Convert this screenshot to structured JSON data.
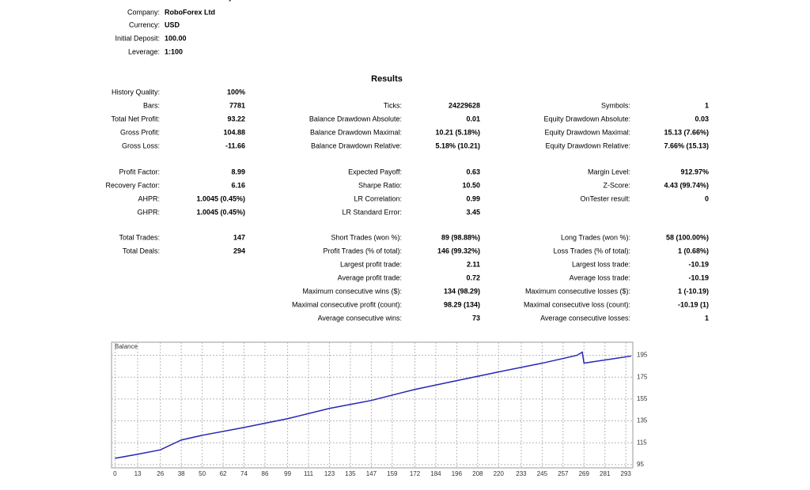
{
  "info": [
    {
      "label": "SessionCloseFridayClose=false",
      "value": null
    },
    {
      "label": "Company:",
      "value": "RoboForex Ltd"
    },
    {
      "label": "Currency:",
      "value": "USD"
    },
    {
      "label": "Initial Deposit:",
      "value": "100.00"
    },
    {
      "label": "Leverage:",
      "value": "1:100"
    }
  ],
  "results": {
    "title": "Results",
    "sections": [
      [
        [
          "History Quality:",
          "100%",
          null,
          null,
          null,
          null
        ],
        [
          "Bars:",
          "7781",
          "Ticks:",
          "24229628",
          "Symbols:",
          "1"
        ],
        [
          "Total Net Profit:",
          "93.22",
          "Balance Drawdown Absolute:",
          "0.01",
          "Equity Drawdown Absolute:",
          "0.03"
        ],
        [
          "Gross Profit:",
          "104.88",
          "Balance Drawdown Maximal:",
          "10.21 (5.18%)",
          "Equity Drawdown Maximal:",
          "15.13 (7.66%)"
        ],
        [
          "Gross Loss:",
          "-11.66",
          "Balance Drawdown Relative:",
          "5.18% (10.21)",
          "Equity Drawdown Relative:",
          "7.66% (15.13)"
        ]
      ],
      [
        [
          "Profit Factor:",
          "8.99",
          "Expected Payoff:",
          "0.63",
          "Margin Level:",
          "912.97%"
        ],
        [
          "Recovery Factor:",
          "6.16",
          "Sharpe Ratio:",
          "10.50",
          "Z-Score:",
          "4.43 (99.74%)"
        ],
        [
          "AHPR:",
          "1.0045 (0.45%)",
          "LR Correlation:",
          "0.99",
          "OnTester result:",
          "0"
        ],
        [
          "GHPR:",
          "1.0045 (0.45%)",
          "LR Standard Error:",
          "3.45",
          null,
          null
        ]
      ],
      [
        [
          "Total Trades:",
          "147",
          "Short Trades (won %):",
          "89 (98.88%)",
          "Long Trades (won %):",
          "58 (100.00%)"
        ],
        [
          "Total Deals:",
          "294",
          "Profit Trades (% of total):",
          "146 (99.32%)",
          "Loss Trades (% of total):",
          "1 (0.68%)"
        ],
        [
          null,
          null,
          "Largest profit trade:",
          "2.11",
          "Largest loss trade:",
          "-10.19"
        ],
        [
          null,
          null,
          "Average profit trade:",
          "0.72",
          "Average loss trade:",
          "-10.19"
        ],
        [
          null,
          null,
          "Maximum consecutive wins ($):",
          "134 (98.29)",
          "Maximum consecutive losses ($):",
          "1 (-10.19)"
        ],
        [
          null,
          null,
          "Maximal consecutive profit (count):",
          "98.29 (134)",
          "Maximal consecutive loss (count):",
          "-10.19 (1)"
        ],
        [
          null,
          null,
          "Average consecutive wins:",
          "73",
          "Average consecutive losses:",
          "1"
        ]
      ]
    ]
  },
  "chart_data": {
    "type": "line",
    "title": "Balance",
    "x": [
      0,
      13,
      26,
      38,
      50,
      74,
      99,
      123,
      147,
      172,
      196,
      220,
      245,
      265,
      268,
      269,
      281,
      296
    ],
    "series": [
      {
        "name": "Balance",
        "color": "#2626b4",
        "values": [
          100.8,
          104.5,
          108.5,
          117.5,
          121.8,
          129,
          137,
          146.4,
          153.7,
          163.8,
          171.8,
          179.8,
          187.8,
          195,
          197.9,
          187.8,
          190.7,
          194.3
        ]
      }
    ],
    "xlim": [
      -2,
      297
    ],
    "ylim": [
      92,
      207
    ],
    "xticks": [
      0,
      13,
      26,
      38,
      50,
      62,
      74,
      86,
      99,
      111,
      123,
      135,
      147,
      159,
      172,
      184,
      196,
      208,
      220,
      233,
      245,
      257,
      269,
      281,
      293
    ],
    "yticks": [
      95,
      115,
      135,
      155,
      175,
      195
    ],
    "grid": true
  }
}
